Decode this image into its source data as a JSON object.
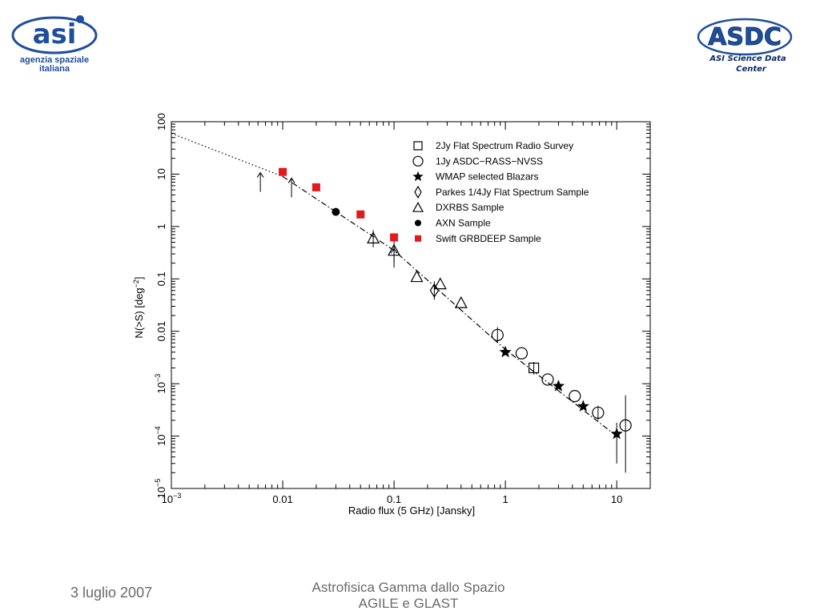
{
  "header": {
    "left_logo": {
      "name": "asi",
      "text_line1": "agenzia spaziale",
      "text_line2": "italiana",
      "color": "#1f4e9c"
    },
    "right_logo": {
      "name": "ASDC",
      "subtitle_line1": "ASI Science Data",
      "subtitle_line2": "Center",
      "color": "#1f4e9c"
    }
  },
  "footer": {
    "date": "3 luglio 2007",
    "title_line1": "Astrofisica Gamma dallo Spazio",
    "title_line2": "AGILE e GLAST"
  },
  "chart_data": {
    "type": "scatter",
    "xlabel": "Radio flux (5 GHz) [Jansky]",
    "ylabel": "N(>S) [deg",
    "ylabel_sup": "−2",
    "ylabel_end": "]",
    "x_scale": "log",
    "y_scale": "log",
    "xlim": [
      0.001,
      20
    ],
    "ylim": [
      1e-05,
      100
    ],
    "x_ticks": [
      {
        "value": 0.001,
        "base": "10",
        "exp": "−3"
      },
      {
        "value": 0.01,
        "text": "0.01"
      },
      {
        "value": 0.1,
        "text": "0.1"
      },
      {
        "value": 1,
        "text": "1"
      },
      {
        "value": 10,
        "text": "10"
      }
    ],
    "y_ticks": [
      {
        "value": 1e-05,
        "base": "10",
        "exp": "−5"
      },
      {
        "value": 0.0001,
        "base": "10",
        "exp": "−4"
      },
      {
        "value": 0.001,
        "base": "10",
        "exp": "−3"
      },
      {
        "value": 0.01,
        "text": "0.01"
      },
      {
        "value": 0.1,
        "text": "0.1"
      },
      {
        "value": 1,
        "text": "1"
      },
      {
        "value": 10,
        "text": "10"
      },
      {
        "value": 100,
        "text": "100"
      }
    ],
    "grid": false,
    "legend_position": "top-right",
    "series": [
      {
        "name": "2Jy Flat Spectrum Radio Survey",
        "marker": "square",
        "color": "#000000",
        "points": [
          {
            "x": 1.8,
            "y": 0.002
          }
        ]
      },
      {
        "name": "1Jy ASDC−RASS−NVSS",
        "marker": "circle",
        "color": "#000000",
        "points": [
          {
            "x": 0.85,
            "y": 0.0085
          },
          {
            "x": 1.4,
            "y": 0.0038
          },
          {
            "x": 2.4,
            "y": 0.0012
          },
          {
            "x": 4.2,
            "y": 0.00058
          },
          {
            "x": 6.8,
            "y": 0.00028
          },
          {
            "x": 12,
            "y": 0.00016
          }
        ]
      },
      {
        "name": "WMAP selected Blazars",
        "marker": "star",
        "color": "#000000",
        "points": [
          {
            "x": 1.0,
            "y": 0.004
          },
          {
            "x": 3.0,
            "y": 0.0009
          },
          {
            "x": 5.0,
            "y": 0.00037
          },
          {
            "x": 10,
            "y": 0.00011
          }
        ]
      },
      {
        "name": "Parkes 1/4Jy Flat Spectrum Sample",
        "marker": "diamond",
        "color": "#000000",
        "points": [
          {
            "x": 0.23,
            "y": 0.06
          }
        ]
      },
      {
        "name": "DXRBS Sample",
        "marker": "triangle",
        "color": "#000000",
        "points": [
          {
            "x": 0.065,
            "y": 0.6
          },
          {
            "x": 0.1,
            "y": 0.35
          },
          {
            "x": 0.16,
            "y": 0.11
          },
          {
            "x": 0.26,
            "y": 0.08
          },
          {
            "x": 0.4,
            "y": 0.035
          }
        ]
      },
      {
        "name": "AXN Sample",
        "marker": "dot",
        "color": "#000000",
        "points": [
          {
            "x": 0.03,
            "y": 1.9
          }
        ]
      },
      {
        "name": "Swift GRBDEEP Sample",
        "marker": "filled-square",
        "color": "#e31a1c",
        "points": [
          {
            "x": 0.01,
            "y": 11
          },
          {
            "x": 0.02,
            "y": 5.6
          },
          {
            "x": 0.05,
            "y": 1.7
          },
          {
            "x": 0.1,
            "y": 0.62
          }
        ]
      }
    ],
    "error_bars": [
      {
        "x": 0.065,
        "y_low": 0.4,
        "y_high": 0.85
      },
      {
        "x": 0.1,
        "y_low": 0.2,
        "y_high": 0.55
      },
      {
        "x": 0.23,
        "y_low": 0.04,
        "y_high": 0.09
      },
      {
        "x": 0.85,
        "y_low": 0.006,
        "y_high": 0.012
      },
      {
        "x": 1.8,
        "y_low": 0.0015,
        "y_high": 0.0026
      },
      {
        "x": 6.8,
        "y_low": 0.0002,
        "y_high": 0.00038
      },
      {
        "x": 10,
        "y_low": 3e-05,
        "y_high": 0.00018
      },
      {
        "x": 12,
        "y_low": 2e-05,
        "y_high": 0.0006
      }
    ],
    "upper_limits": [
      {
        "x": 0.0063,
        "y": 7
      },
      {
        "x": 0.012,
        "y": 5.5
      },
      {
        "x": 0.1,
        "y": 0.25
      }
    ],
    "fit_lines": [
      {
        "style": "dotted",
        "points": [
          {
            "x": 0.001,
            "y": 60
          },
          {
            "x": 0.01,
            "y": 9
          }
        ]
      },
      {
        "style": "dash-dot",
        "points": [
          {
            "x": 0.01,
            "y": 9
          },
          {
            "x": 0.1,
            "y": 0.35
          },
          {
            "x": 1,
            "y": 0.0045
          },
          {
            "x": 10,
            "y": 0.0001
          }
        ]
      }
    ]
  }
}
